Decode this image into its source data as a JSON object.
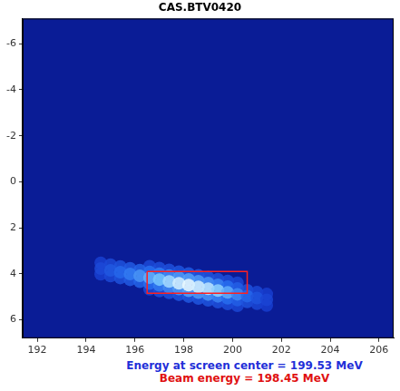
{
  "chart_data": {
    "type": "heatmap",
    "title": "CAS.BTV0420",
    "xlim": [
      191.4,
      206.6
    ],
    "xticks": [
      192,
      194,
      196,
      198,
      200,
      202,
      204,
      206
    ],
    "ylim": [
      6.8,
      -7.1
    ],
    "yticks": [
      -6,
      -4,
      -2,
      0,
      2,
      4,
      6
    ],
    "grid": false,
    "spot": {
      "x": [
        196.6,
        197.0,
        197.4,
        197.8,
        198.2,
        198.6,
        199.0,
        199.4,
        199.8,
        200.2,
        196.6,
        197.0,
        197.4,
        197.8,
        198.2,
        198.6,
        199.0,
        199.4,
        199.8,
        200.2,
        194.6,
        195.0,
        195.4,
        195.8,
        196.2,
        196.6,
        197.0,
        197.4,
        197.8,
        198.2,
        198.6,
        199.0,
        199.4,
        199.8,
        200.2,
        200.6,
        201.0,
        201.4,
        194.6,
        195.0,
        195.4,
        195.8,
        196.2,
        196.6,
        197.0,
        197.4,
        197.8,
        198.2,
        198.6,
        199.0,
        199.4,
        199.8,
        200.2,
        200.6,
        201.0,
        201.4,
        194.6,
        195.0,
        195.4,
        195.8,
        196.2,
        196.6,
        197.0,
        197.4,
        197.8,
        198.2,
        198.6,
        199.0,
        199.4,
        199.8,
        200.2,
        200.6,
        201.0,
        201.4
      ],
      "y": [
        3.67,
        3.75,
        3.83,
        3.91,
        3.99,
        4.07,
        4.15,
        4.23,
        4.31,
        4.39,
        4.67,
        4.75,
        4.83,
        4.91,
        4.99,
        5.07,
        5.15,
        5.23,
        5.31,
        5.39,
        3.52,
        3.6,
        3.68,
        3.76,
        3.84,
        3.92,
        4.0,
        4.08,
        4.16,
        4.24,
        4.32,
        4.4,
        4.48,
        4.56,
        4.64,
        4.72,
        4.8,
        4.88,
        4.02,
        4.1,
        4.18,
        4.26,
        4.34,
        4.42,
        4.5,
        4.58,
        4.66,
        4.74,
        4.82,
        4.9,
        4.98,
        5.06,
        5.14,
        5.22,
        5.3,
        5.38,
        3.77,
        3.85,
        3.93,
        4.01,
        4.09,
        4.17,
        4.25,
        4.33,
        4.41,
        4.49,
        4.57,
        4.65,
        4.73,
        4.81,
        4.89,
        4.97,
        5.05,
        5.13
      ],
      "intensity": [
        0.15,
        0.18,
        0.2,
        0.22,
        0.25,
        0.24,
        0.22,
        0.2,
        0.17,
        0.13,
        0.15,
        0.18,
        0.2,
        0.22,
        0.25,
        0.24,
        0.22,
        0.2,
        0.17,
        0.13,
        0.09,
        0.15,
        0.21,
        0.27,
        0.33,
        0.39,
        0.45,
        0.51,
        0.57,
        0.6,
        0.57,
        0.54,
        0.48,
        0.39,
        0.3,
        0.21,
        0.13,
        0.07,
        0.09,
        0.15,
        0.21,
        0.27,
        0.33,
        0.39,
        0.45,
        0.51,
        0.57,
        0.6,
        0.57,
        0.54,
        0.48,
        0.39,
        0.3,
        0.21,
        0.13,
        0.07,
        0.15,
        0.25,
        0.35,
        0.45,
        0.55,
        0.65,
        0.75,
        0.85,
        0.95,
        1.0,
        0.95,
        0.9,
        0.8,
        0.65,
        0.5,
        0.35,
        0.22,
        0.12
      ]
    },
    "box": {
      "x": [
        196.5,
        200.6
      ],
      "y": [
        3.9,
        4.85
      ],
      "color": "#ff2020"
    },
    "annotations": [
      {
        "text": "Energy at screen center = 199.53 MeV",
        "color": "#1f2fd8"
      },
      {
        "text": "Beam energy = 198.45 MeV",
        "color": "#e01010"
      }
    ]
  }
}
